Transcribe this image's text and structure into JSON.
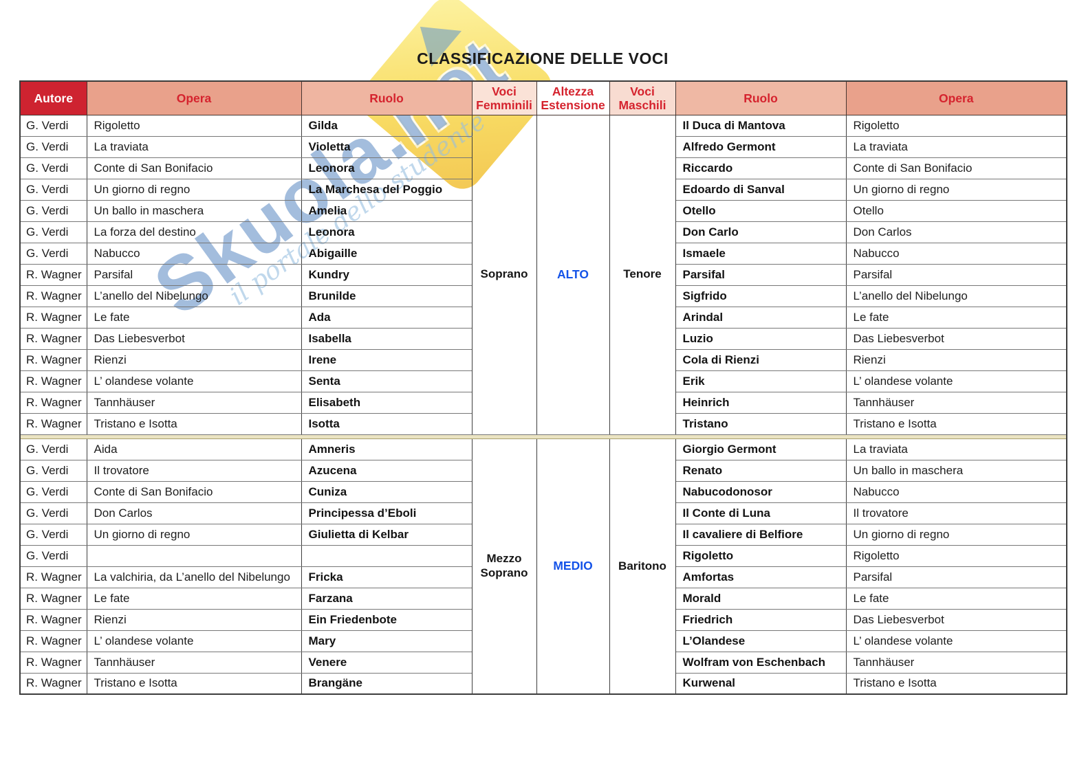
{
  "title": "CLASSIFICAZIONE DELLE VOCI",
  "colors": {
    "accent_red": "#ce2330",
    "header_text_red": "#d5232e",
    "header_salmon": "#e9a18b",
    "header_light_salmon": "#efb5a1",
    "header_pale_pink": "#fae2d7",
    "range_blue": "#1453e8",
    "separator_tan": "#ebe4c2",
    "watermark_blue": "#3e76b8",
    "watermark_yellow": "#f7d74a"
  },
  "watermark": {
    "brand": "Skuola.net",
    "tagline": "il portale dello studente"
  },
  "table": {
    "headers": {
      "autore": "Autore",
      "opera_left": "Opera",
      "ruolo_left": "Ruolo",
      "voci_femminili": "Voci Femminili",
      "altezza_estensione": "Altezza Estensione",
      "voci_maschili": "Voci Maschili",
      "ruolo_right": "Ruolo",
      "opera_right": "Opera"
    },
    "sections": [
      {
        "voce_femminile": "Soprano",
        "altezza": "ALTO",
        "voce_maschile": "Tenore",
        "rows": [
          {
            "autore": "G. Verdi",
            "opera": "Rigoletto",
            "ruolo": "Gilda",
            "ruolo_maschile": "Il Duca di Mantova",
            "opera_maschile": "Rigoletto"
          },
          {
            "autore": "G. Verdi",
            "opera": "La traviata",
            "ruolo": "Violetta",
            "ruolo_maschile": "Alfredo Germont",
            "opera_maschile": "La traviata"
          },
          {
            "autore": "G. Verdi",
            "opera": "Conte di San Bonifacio",
            "ruolo": "Leonora",
            "ruolo_maschile": "Riccardo",
            "opera_maschile": "Conte di San Bonifacio"
          },
          {
            "autore": "G. Verdi",
            "opera": "Un giorno di regno",
            "ruolo": "La Marchesa del Poggio",
            "ruolo_maschile": "Edoardo di Sanval",
            "opera_maschile": "Un giorno di regno"
          },
          {
            "autore": "G. Verdi",
            "opera": "Un ballo in maschera",
            "ruolo": "Amelia",
            "ruolo_maschile": "Otello",
            "opera_maschile": "Otello"
          },
          {
            "autore": "G. Verdi",
            "opera": "La forza del destino",
            "ruolo": "Leonora",
            "ruolo_maschile": "Don Carlo",
            "opera_maschile": "Don Carlos"
          },
          {
            "autore": "G. Verdi",
            "opera": "Nabucco",
            "ruolo": "Abigaille",
            "ruolo_maschile": "Ismaele",
            "opera_maschile": "Nabucco"
          },
          {
            "autore": "R. Wagner",
            "opera": "Parsifal",
            "ruolo": "Kundry",
            "ruolo_maschile": "Parsifal",
            "opera_maschile": "Parsifal"
          },
          {
            "autore": "R. Wagner",
            "opera": "L’anello del Nibelungo",
            "ruolo": "Brunilde",
            "ruolo_maschile": "Sigfrido",
            "opera_maschile": "L’anello del Nibelungo"
          },
          {
            "autore": "R. Wagner",
            "opera": "Le fate",
            "ruolo": "Ada",
            "ruolo_maschile": "Arindal",
            "opera_maschile": "Le fate"
          },
          {
            "autore": "R. Wagner",
            "opera": "Das Liebesverbot",
            "ruolo": "Isabella",
            "ruolo_maschile": "Luzio",
            "opera_maschile": "Das Liebesverbot"
          },
          {
            "autore": "R. Wagner",
            "opera": "Rienzi",
            "ruolo": "Irene",
            "ruolo_maschile": "Cola di Rienzi",
            "opera_maschile": "Rienzi"
          },
          {
            "autore": "R. Wagner",
            "opera": "L’ olandese volante",
            "ruolo": "Senta",
            "ruolo_maschile": "Erik",
            "opera_maschile": "L’ olandese volante"
          },
          {
            "autore": "R. Wagner",
            "opera": "Tannhäuser",
            "ruolo": "Elisabeth",
            "ruolo_maschile": "Heinrich",
            "opera_maschile": "Tannhäuser"
          },
          {
            "autore": "R. Wagner",
            "opera": "Tristano e Isotta",
            "ruolo": "Isotta",
            "ruolo_maschile": "Tristano",
            "opera_maschile": "Tristano e Isotta"
          }
        ]
      },
      {
        "voce_femminile": "Mezzo Soprano",
        "altezza": "MEDIO",
        "voce_maschile": "Baritono",
        "rows": [
          {
            "autore": "G. Verdi",
            "opera": "Aida",
            "ruolo": "Amneris",
            "ruolo_maschile": "Giorgio Germont",
            "opera_maschile": "La traviata"
          },
          {
            "autore": "G. Verdi",
            "opera": "Il trovatore",
            "ruolo": "Azucena",
            "ruolo_maschile": "Renato",
            "opera_maschile": "Un ballo in maschera"
          },
          {
            "autore": "G. Verdi",
            "opera": "Conte di San Bonifacio",
            "ruolo": "Cuniza",
            "ruolo_maschile": "Nabucodonosor",
            "opera_maschile": "Nabucco"
          },
          {
            "autore": "G. Verdi",
            "opera": "Don Carlos",
            "ruolo": "Principessa d’Eboli",
            "ruolo_maschile": "Il Conte di Luna",
            "opera_maschile": "Il trovatore"
          },
          {
            "autore": "G. Verdi",
            "opera": "Un giorno di regno",
            "ruolo": "Giulietta di Kelbar",
            "ruolo_maschile": "Il cavaliere di Belfiore",
            "opera_maschile": "Un giorno di regno"
          },
          {
            "autore": "G. Verdi",
            "opera": "",
            "ruolo": "",
            "ruolo_maschile": "Rigoletto",
            "opera_maschile": "Rigoletto"
          },
          {
            "autore": "R. Wagner",
            "opera": "La valchiria, da L’anello del Nibelungo",
            "ruolo": "Fricka",
            "ruolo_maschile": "Amfortas",
            "opera_maschile": "Parsifal"
          },
          {
            "autore": "R. Wagner",
            "opera": "Le fate",
            "ruolo": "Farzana",
            "ruolo_maschile": "Morald",
            "opera_maschile": "Le fate"
          },
          {
            "autore": "R. Wagner",
            "opera": "Rienzi",
            "ruolo": "Ein Friedenbote",
            "ruolo_maschile": "Friedrich",
            "opera_maschile": "Das Liebesverbot"
          },
          {
            "autore": "R. Wagner",
            "opera": "L’ olandese volante",
            "ruolo": "Mary",
            "ruolo_maschile": "L’Olandese",
            "opera_maschile": "L’ olandese volante"
          },
          {
            "autore": "R. Wagner",
            "opera": "Tannhäuser",
            "ruolo": "Venere",
            "ruolo_maschile": "Wolfram von Eschenbach",
            "opera_maschile": "Tannhäuser"
          },
          {
            "autore": "R. Wagner",
            "opera": "Tristano e Isotta",
            "ruolo": "Brangäne",
            "ruolo_maschile": "Kurwenal",
            "opera_maschile": "Tristano e Isotta"
          }
        ]
      }
    ]
  }
}
